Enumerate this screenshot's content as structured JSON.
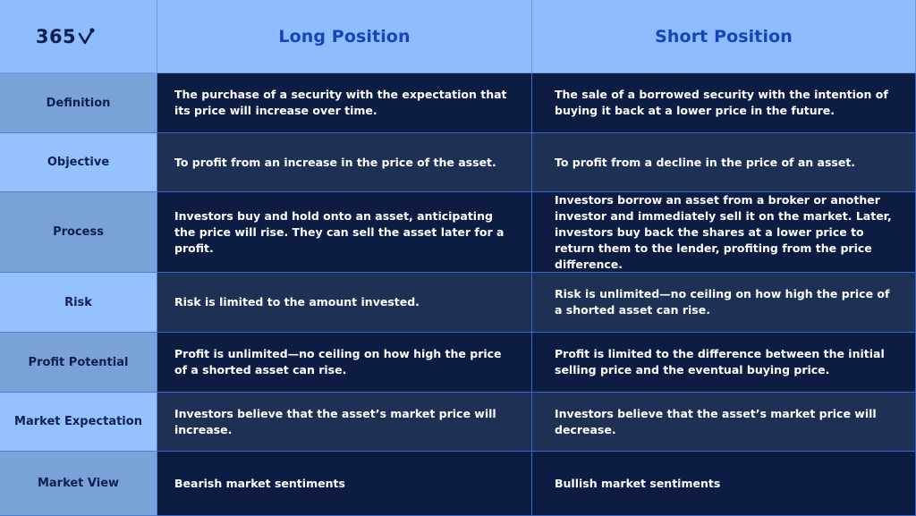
{
  "logo": {
    "text": "365"
  },
  "columns": [
    "Long Position",
    "Short Position"
  ],
  "rows": [
    {
      "label": "Definition",
      "long": "The purchase of a security with the expectation that its price will increase over time.",
      "short": "The sale of a borrowed security with the intention of buying it back at a lower price in the future."
    },
    {
      "label": "Objective",
      "long": "To profit from an increase in the price of the asset.",
      "short": "To profit from a decline in the price of an asset."
    },
    {
      "label": "Process",
      "long": "Investors buy and hold onto an asset, anticipating the price will rise. They can sell the asset later for a profit.",
      "short": "Investors borrow an asset from a broker or another investor and immediately sell it on the market. Later, investors buy back the shares at a lower price to return them to the lender, profiting from the price difference."
    },
    {
      "label": "Risk",
      "long": "Risk is limited to the amount invested.",
      "short": "Risk is unlimited—no ceiling on how high the price of a shorted asset can rise."
    },
    {
      "label": "Profit Potential",
      "long": "Profit is unlimited—no ceiling on how high the price of a shorted asset can rise.",
      "short": "Profit is limited to the difference between the initial selling price and the eventual buying price."
    },
    {
      "label": "Market Expectation",
      "long": "Investors believe that the asset’s market price will increase.",
      "short": "Investors believe that the asset’s market price will decrease."
    },
    {
      "label": "Market View",
      "long": "Bearish market sentiments",
      "short": "Bullish market sentiments"
    }
  ],
  "colors": {
    "header_bg": "#8fbcff",
    "header_text": "#1446b8",
    "label_odd": "#79a2d8",
    "label_even": "#95c2ff",
    "body_odd": "#0c1c43",
    "body_even": "#1e3155"
  }
}
